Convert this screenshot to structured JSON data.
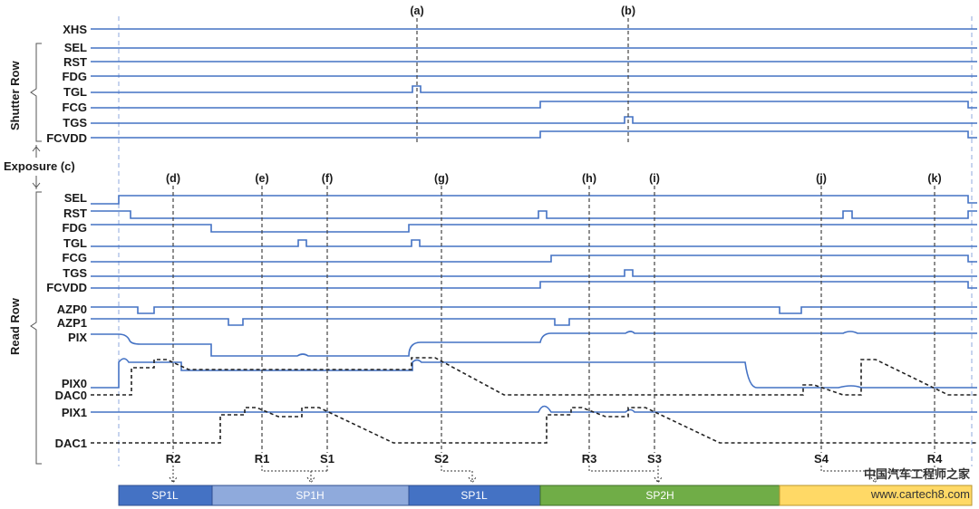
{
  "groups": {
    "shutter": "Shutter Row",
    "read": "Read Row",
    "exposure": "Exposure (c)"
  },
  "shutter_signals": [
    "XHS",
    "SEL",
    "RST",
    "FDG",
    "TGL",
    "FCG",
    "TGS",
    "FCVDD"
  ],
  "read_signals": [
    "SEL",
    "RST",
    "FDG",
    "TGL",
    "FCG",
    "TGS",
    "FCVDD",
    "AZP0",
    "AZP1",
    "PIX",
    "PIX0",
    "DAC0",
    "PIX1",
    "DAC1"
  ],
  "markers": {
    "a": "(a)",
    "b": "(b)",
    "d": "(d)",
    "e": "(e)",
    "f": "(f)",
    "g": "(g)",
    "h": "(h)",
    "i": "(i)",
    "j": "(j)",
    "k": "(k)"
  },
  "samples": {
    "R2": "R2",
    "R1": "R1",
    "S1": "S1",
    "S2": "S2",
    "R3": "R3",
    "S3": "S3",
    "S4": "S4",
    "R4": "R4"
  },
  "phases": [
    {
      "label": "SP1L",
      "color": "#4472c4"
    },
    {
      "label": "SP1H",
      "color": "#8faadc"
    },
    {
      "label": "SP1L",
      "color": "#4472c4"
    },
    {
      "label": "SP2H",
      "color": "#70ad47"
    },
    {
      "label": "",
      "color": "#ffd966"
    }
  ],
  "watermark": {
    "line1": "中国汽车工程师之家",
    "line2": "www.cartech8.com"
  }
}
